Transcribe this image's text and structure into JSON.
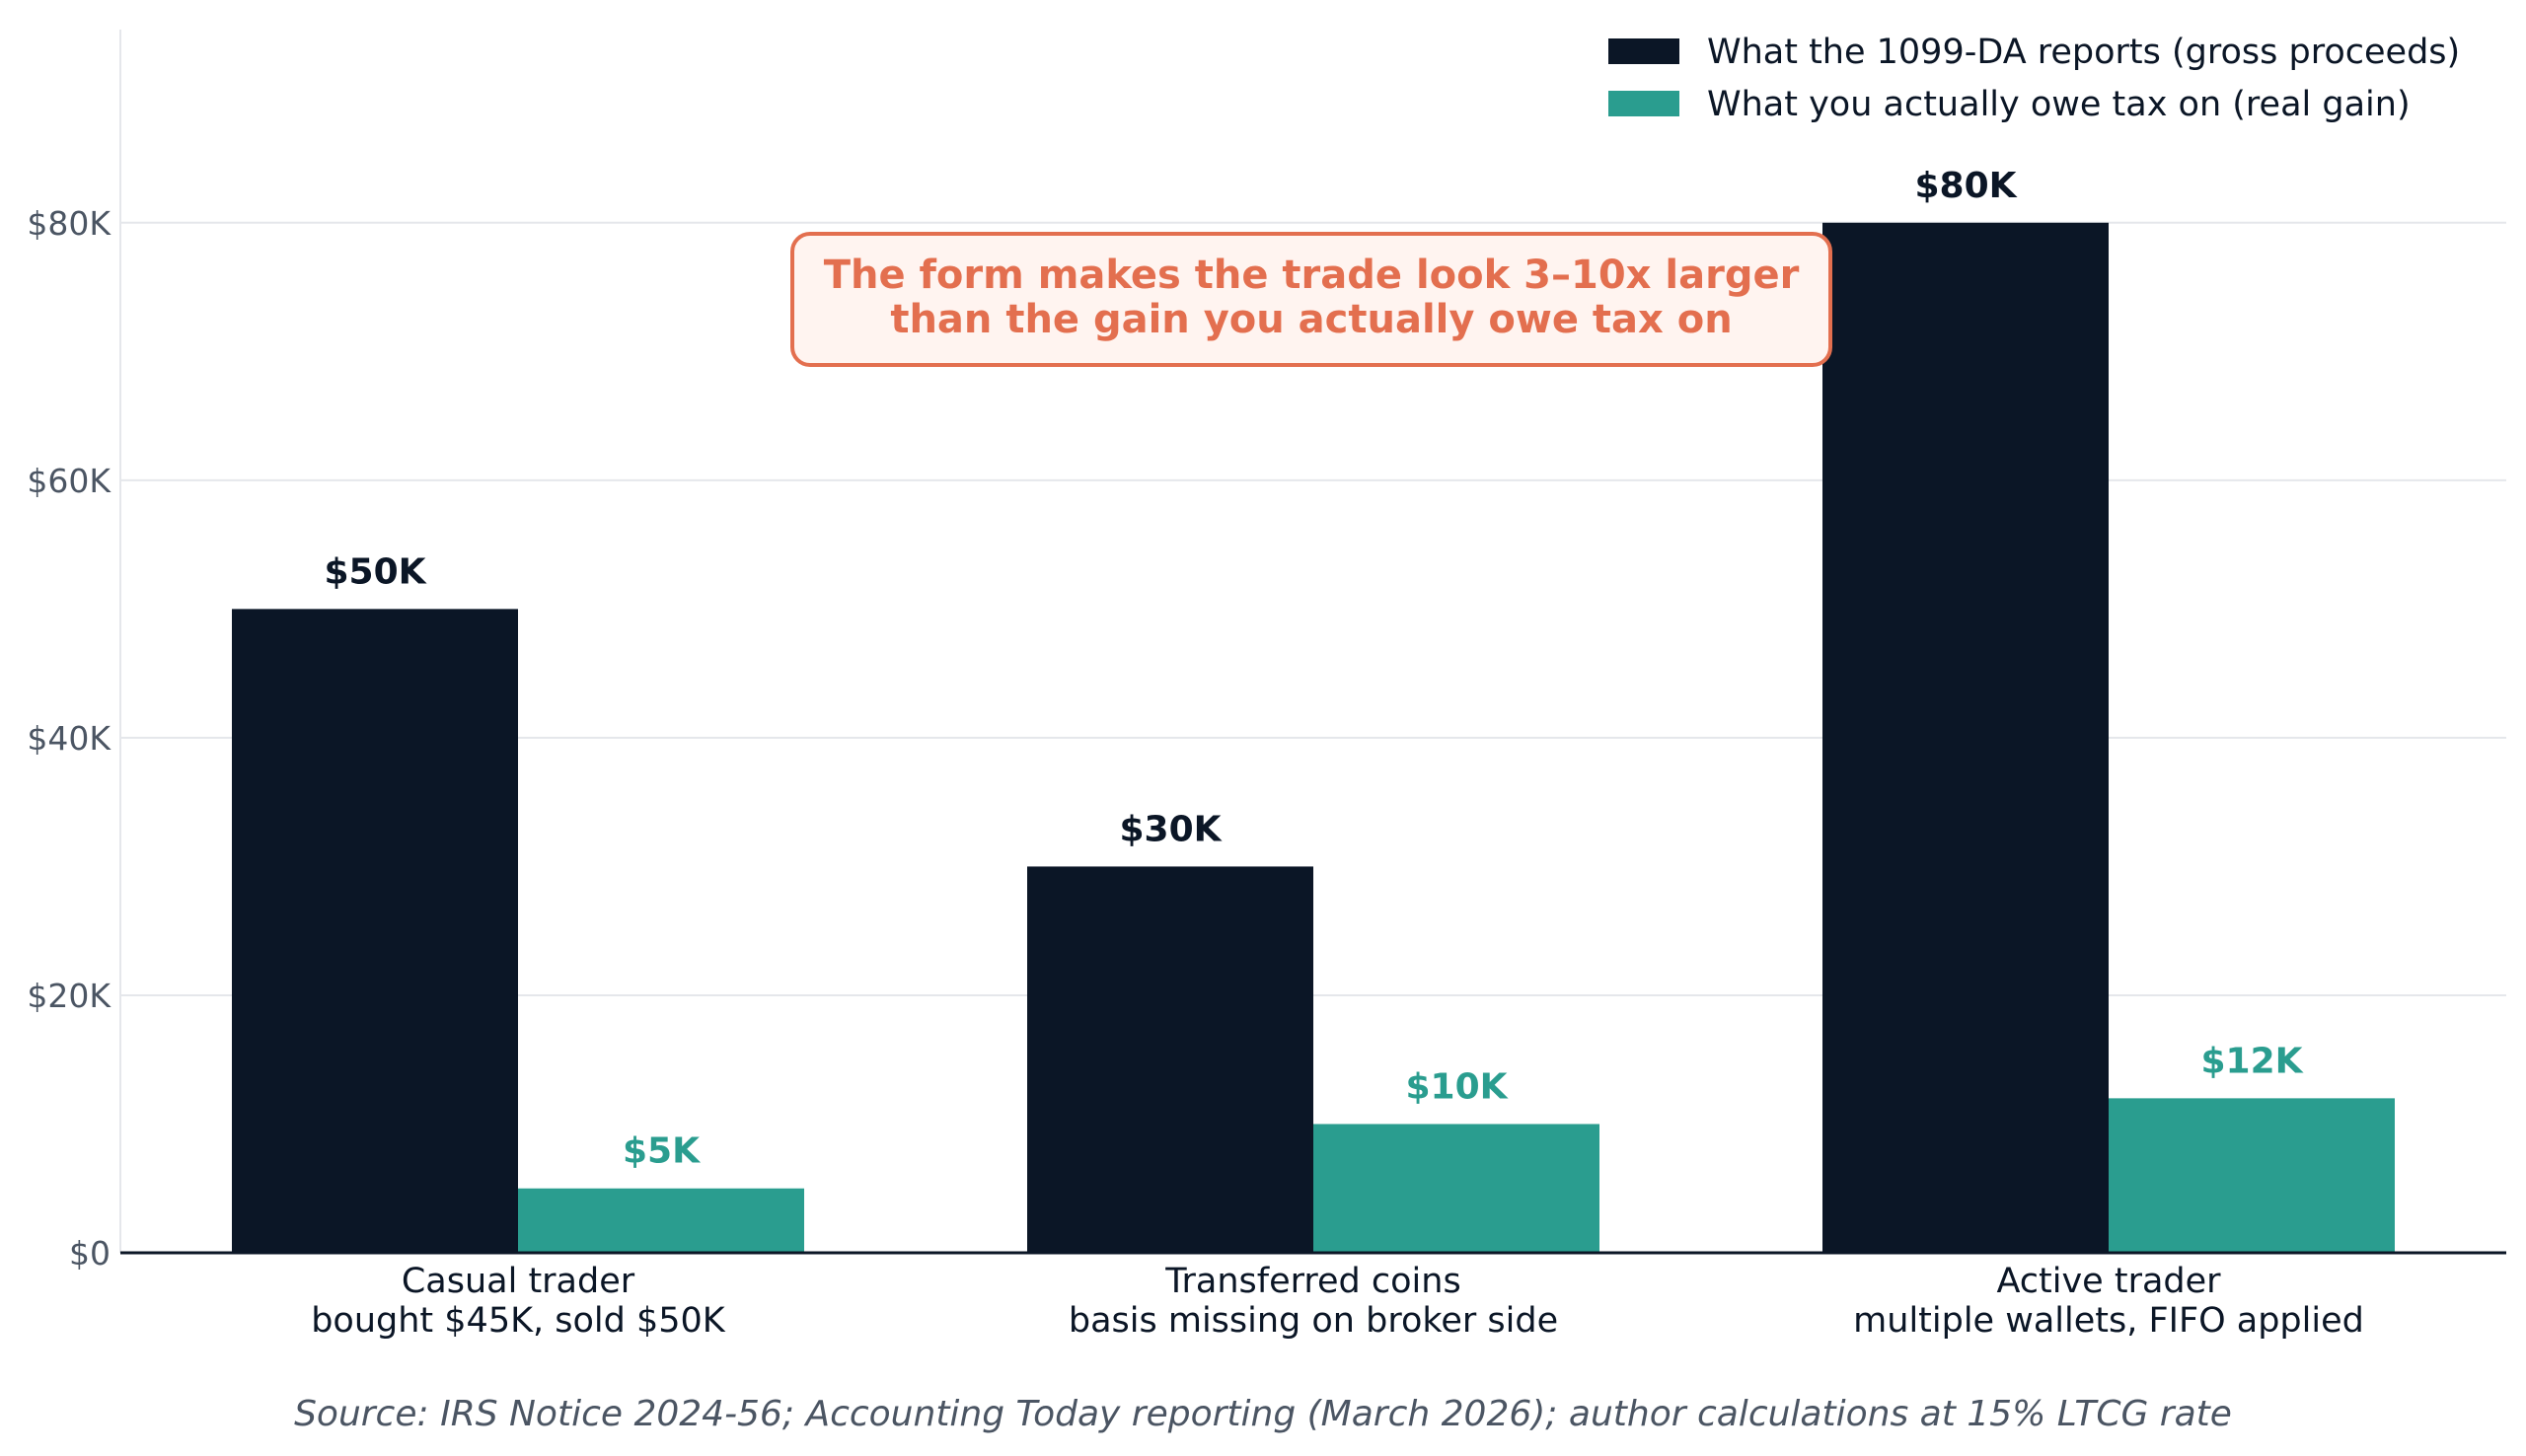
{
  "chart_data": {
    "type": "bar",
    "categories": [
      [
        "Casual trader",
        "bought $45K, sold $50K"
      ],
      [
        "Transferred coins",
        "basis missing on broker side"
      ],
      [
        "Active trader",
        "multiple wallets, FIFO applied"
      ]
    ],
    "series": [
      {
        "name": "What the 1099-DA reports (gross proceeds)",
        "color": "#0b1626",
        "values": [
          50000,
          30000,
          80000
        ],
        "labels": [
          "$50K",
          "$30K",
          "$80K"
        ]
      },
      {
        "name": "What you actually owe tax on (real gain)",
        "color": "#2a9d8f",
        "values": [
          5000,
          10000,
          12000
        ],
        "labels": [
          "$5K",
          "$10K",
          "$12K"
        ]
      }
    ],
    "ylim": [
      0,
      95000
    ],
    "yticks": [
      0,
      20000,
      40000,
      60000,
      80000
    ],
    "ytick_labels": [
      "$0",
      "$20K",
      "$40K",
      "$60K",
      "$80K"
    ],
    "grid": "horizontal",
    "legend_position": "top-right",
    "annotation": {
      "lines": [
        "The form makes the trade look 3–10x larger",
        "than the gain you actually owe tax on"
      ],
      "color": "#e36f4f",
      "background": "#fff4f0"
    },
    "source": "Source: IRS Notice 2024-56; Accounting Today reporting (March 2026); author calculations at 15% LTCG rate"
  }
}
